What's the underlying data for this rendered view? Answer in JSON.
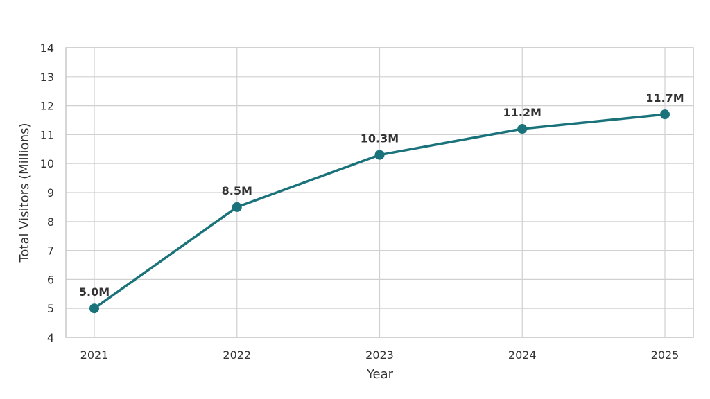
{
  "chart_data": {
    "type": "line",
    "title": "",
    "xlabel": "Year",
    "ylabel": "Total Visitors (Millions)",
    "x": [
      "2021",
      "2022",
      "2023",
      "2024",
      "2025"
    ],
    "series": [
      {
        "values": [
          5.0,
          8.5,
          10.3,
          11.2,
          11.7
        ],
        "labels": [
          "5.0M",
          "8.5M",
          "10.3M",
          "11.2M",
          "11.7M"
        ]
      }
    ],
    "ylim": [
      4,
      14
    ],
    "yticks": [
      "4",
      "5",
      "6",
      "7",
      "8",
      "9",
      "10",
      "11",
      "12",
      "13",
      "14"
    ],
    "grid": true,
    "legend": "none"
  },
  "colors": {
    "series": "#1a737a",
    "grid": "#d0d0d0",
    "text": "#333333"
  }
}
